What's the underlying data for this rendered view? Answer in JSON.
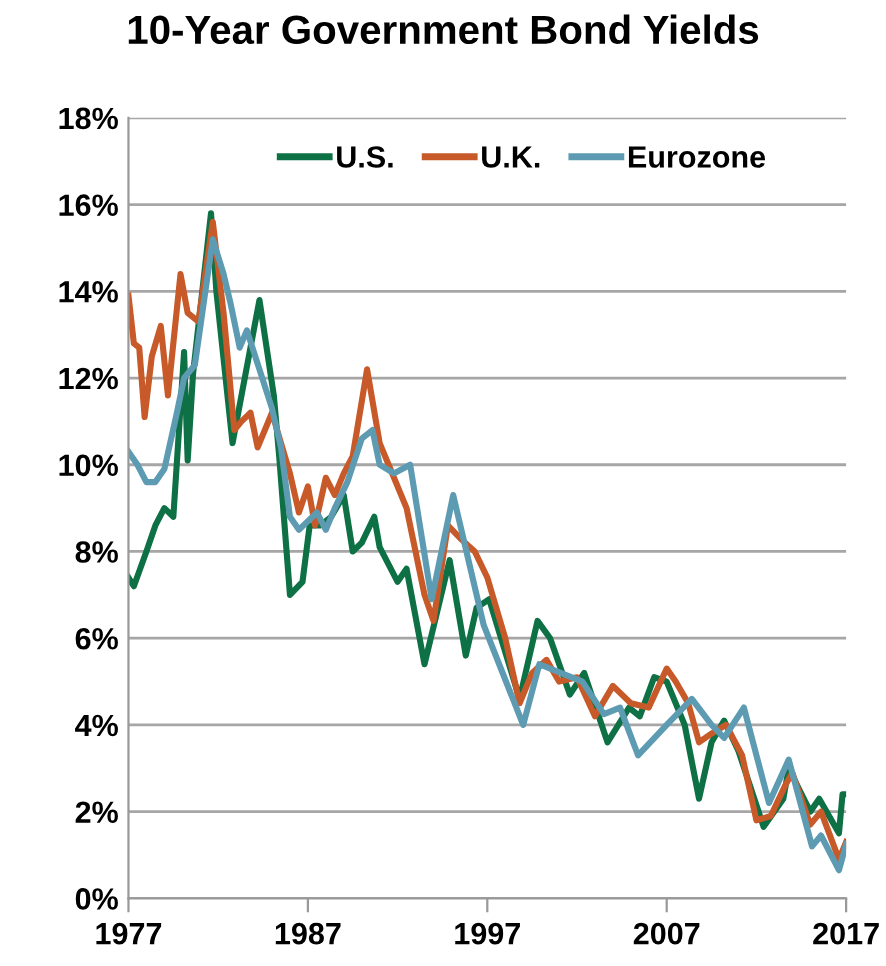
{
  "chart_data": {
    "type": "line",
    "title": "10-Year Government Bond Yields",
    "xlim": [
      1977,
      2017
    ],
    "xticks": [
      1977,
      1987,
      1997,
      2007,
      2017
    ],
    "ylim": [
      0,
      18
    ],
    "yticks": [
      {
        "value": 0,
        "label": "0%"
      },
      {
        "value": 2,
        "label": "2%"
      },
      {
        "value": 4,
        "label": "4%"
      },
      {
        "value": 6,
        "label": "6%"
      },
      {
        "value": 8,
        "label": "8%"
      },
      {
        "value": 10,
        "label": "10%"
      },
      {
        "value": 12,
        "label": "12%"
      },
      {
        "value": 14,
        "label": "14%"
      },
      {
        "value": 16,
        "label": "16%"
      },
      {
        "value": 18,
        "label": "18%"
      }
    ],
    "grid": "y",
    "legend": "top",
    "marker": "none",
    "line_style": "solid",
    "series": [
      {
        "name": "U.S.",
        "color": "#0e7045",
        "x": [
          1977,
          1977.3,
          1978,
          1978.5,
          1979,
          1979.5,
          1980.1,
          1980.3,
          1980.6,
          1981.6,
          1981.9,
          1982.8,
          1984.3,
          1985.1,
          1985.4,
          1986,
          1986.7,
          1987.1,
          1987.7,
          1988.3,
          1989,
          1989.5,
          1990,
          1990.7,
          1991,
          1992,
          1992.5,
          1993.5,
          1994.9,
          1995.8,
          1996.4,
          1997.1,
          1998.8,
          1999.8,
          2000.5,
          2001.6,
          2002.4,
          2003.7,
          2004.9,
          2005.5,
          2006.3,
          2007,
          2008,
          2008.8,
          2009.5,
          2010.2,
          2011,
          2012.4,
          2013.5,
          2013.8,
          2015,
          2015.5,
          2016.6,
          2016.8,
          2017
        ],
        "values": [
          7.4,
          7.2,
          8.0,
          8.6,
          9.0,
          8.8,
          12.6,
          10.1,
          12.1,
          15.8,
          14.0,
          10.5,
          13.8,
          11.6,
          10.2,
          7.0,
          7.3,
          8.6,
          8.6,
          8.8,
          9.3,
          8.0,
          8.2,
          8.8,
          8.1,
          7.3,
          7.6,
          5.4,
          7.8,
          5.6,
          6.7,
          6.9,
          4.6,
          6.4,
          6.0,
          4.7,
          5.2,
          3.6,
          4.4,
          4.2,
          5.1,
          5.0,
          4.0,
          2.3,
          3.6,
          4.1,
          3.4,
          1.65,
          2.3,
          3.0,
          2.0,
          2.3,
          1.5,
          2.4,
          2.4
        ]
      },
      {
        "name": "U.K.",
        "color": "#c85a2a",
        "x": [
          1977,
          1977.3,
          1977.6,
          1977.9,
          1978.3,
          1978.8,
          1979.2,
          1979.9,
          1980.3,
          1980.9,
          1981.7,
          1982.3,
          1982.9,
          1983.3,
          1983.8,
          1984.2,
          1985,
          1985.5,
          1986,
          1986.5,
          1987,
          1987.4,
          1988,
          1988.5,
          1989,
          1989.5,
          1990.3,
          1991,
          1991.5,
          1992.5,
          1993.5,
          1994,
          1994.8,
          1995.5,
          1996.3,
          1997,
          1998,
          1998.8,
          1999.5,
          2000.3,
          2001,
          2002,
          2003,
          2004,
          2005,
          2006,
          2007,
          2007.5,
          2008.2,
          2008.8,
          2009.5,
          2010.3,
          2011.2,
          2012,
          2012.8,
          2013.6,
          2014,
          2015,
          2015.6,
          2016.6,
          2017
        ],
        "values": [
          13.9,
          12.8,
          12.7,
          11.1,
          12.5,
          13.2,
          11.6,
          14.4,
          13.5,
          13.3,
          15.6,
          13.5,
          10.8,
          11.0,
          11.2,
          10.4,
          11.2,
          10.5,
          9.8,
          8.9,
          9.5,
          8.6,
          9.7,
          9.3,
          9.8,
          10.2,
          12.2,
          10.5,
          10.0,
          9.0,
          7.0,
          6.4,
          8.6,
          8.3,
          8.0,
          7.4,
          6.0,
          4.5,
          5.2,
          5.5,
          5.0,
          5.1,
          4.2,
          4.9,
          4.5,
          4.4,
          5.3,
          5.0,
          4.5,
          3.6,
          3.8,
          4.0,
          3.3,
          1.8,
          1.9,
          2.6,
          2.9,
          1.7,
          2.0,
          0.9,
          1.3
        ]
      },
      {
        "name": "Eurozone",
        "color": "#5d9bb2",
        "x": [
          1977,
          1977.5,
          1978,
          1978.5,
          1979,
          1979.7,
          1980.1,
          1980.7,
          1981.7,
          1982.3,
          1982.7,
          1983.2,
          1983.6,
          1984.3,
          1985,
          1985.5,
          1986,
          1986.5,
          1987,
          1987.5,
          1988,
          1988.5,
          1989.2,
          1990,
          1990.6,
          1991,
          1991.8,
          1992.7,
          1993.9,
          1995.1,
          1996.8,
          1999,
          1999.9,
          2002.3,
          2003.5,
          2004.4,
          2005.4,
          2007,
          2008.4,
          2009.5,
          2010.2,
          2011.3,
          2012.7,
          2013.8,
          2015.1,
          2015.6,
          2016.6,
          2017
        ],
        "values": [
          10.3,
          10.0,
          9.6,
          9.6,
          9.9,
          11.2,
          12.0,
          12.3,
          15.2,
          14.4,
          13.7,
          12.7,
          13.1,
          12.2,
          11.3,
          10.4,
          8.8,
          8.5,
          8.7,
          8.9,
          8.5,
          9.0,
          9.6,
          10.6,
          10.8,
          10.0,
          9.8,
          10.0,
          6.9,
          9.3,
          6.3,
          4.0,
          5.4,
          5.0,
          4.25,
          4.4,
          3.3,
          4.0,
          4.6,
          4.0,
          3.7,
          4.4,
          2.2,
          3.2,
          1.2,
          1.45,
          0.65,
          1.25
        ]
      }
    ]
  }
}
